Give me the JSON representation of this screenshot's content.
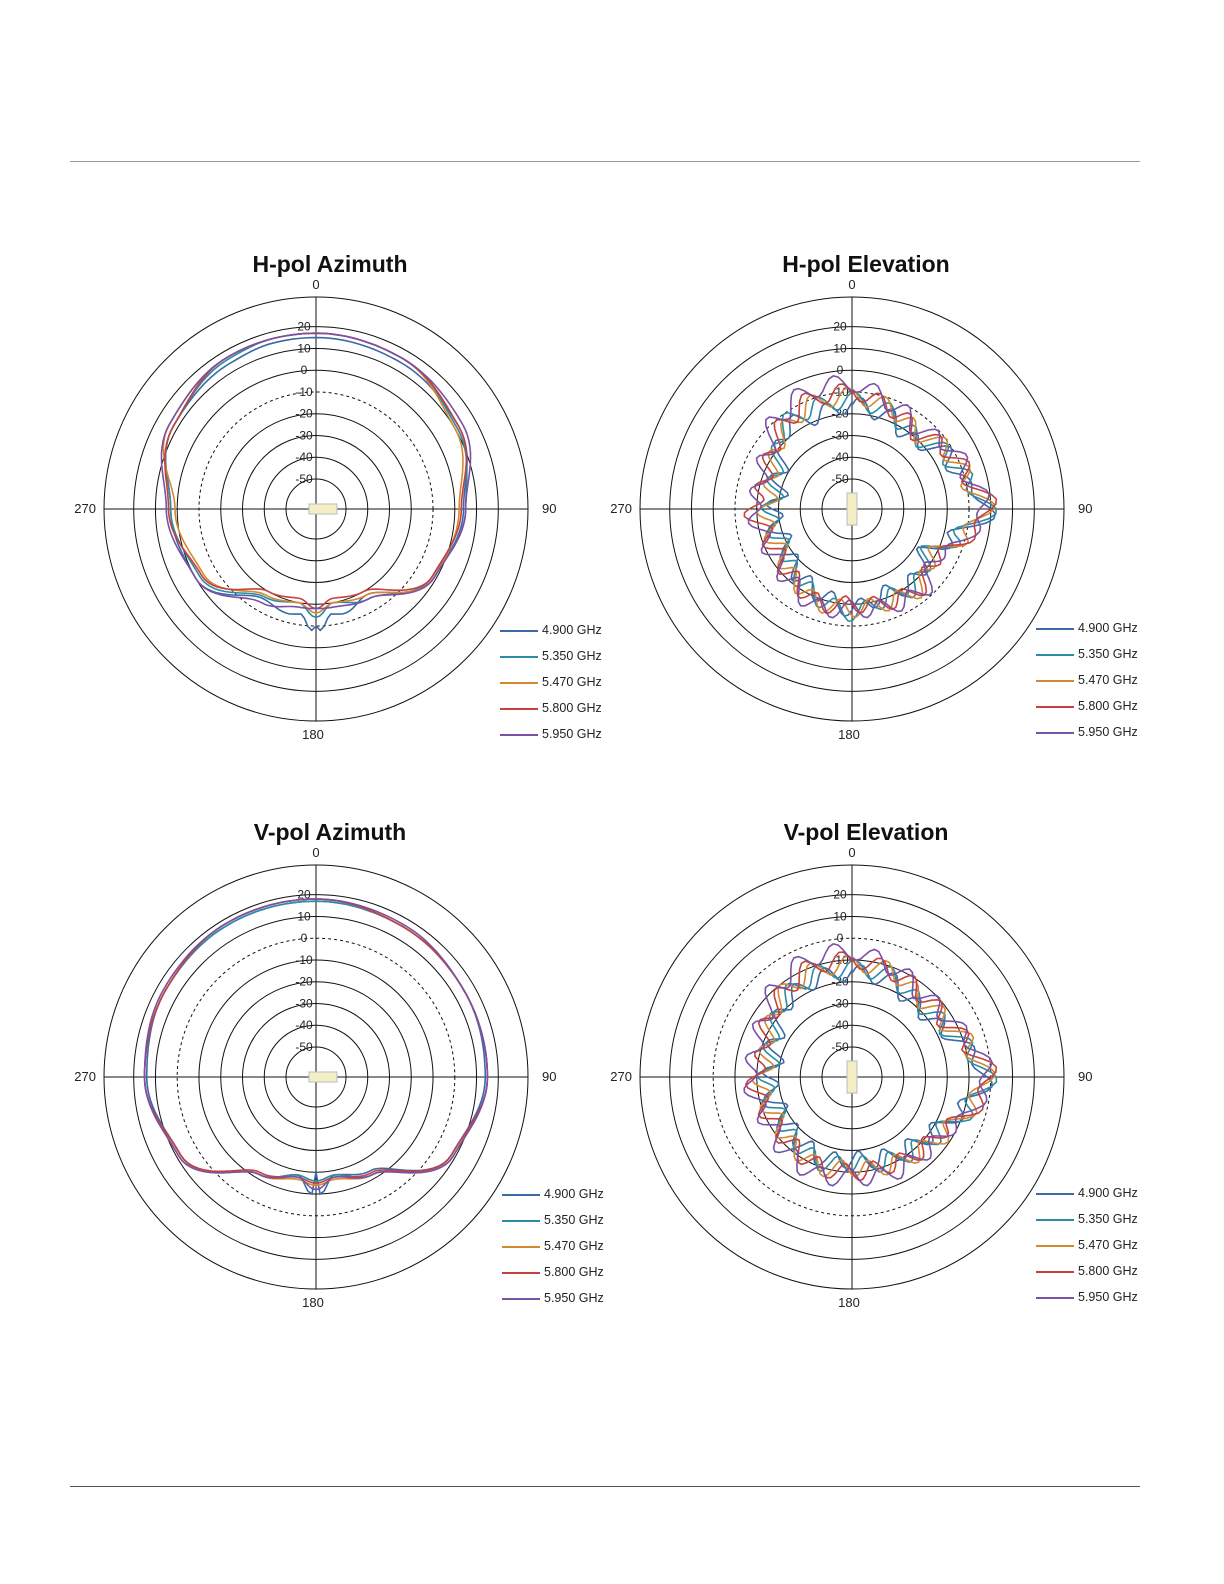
{
  "frequencies": [
    "4.900 GHz",
    "5.350 GHz",
    "5.470 GHz",
    "5.800 GHz",
    "5.950 GHz"
  ],
  "colors": [
    "#3a6aa8",
    "#2a8da4",
    "#d4882f",
    "#c6403d",
    "#7b50a6"
  ],
  "chart_data": [
    {
      "type": "polar-line",
      "title": "H-pol Azimuth",
      "angle_ticks": [
        "0",
        "90",
        "180",
        "270"
      ],
      "radial_ticks": [
        "20",
        "10",
        "0",
        "-10",
        "-20",
        "-30",
        "-40",
        "-50"
      ],
      "rlim": [
        -50,
        20
      ],
      "dashed_ring": -10,
      "series": [
        {
          "name": "4.900 GHz",
          "angle_deg": [
            0,
            30,
            60,
            90,
            120,
            150,
            165,
            172,
            178,
            180,
            182,
            188,
            195,
            210,
            240,
            270,
            300,
            330,
            345
          ],
          "values_db": [
            15,
            14,
            12,
            4,
            -1,
            -18,
            -14,
            -15,
            -8,
            -10,
            -8,
            -15,
            -14,
            -16,
            0,
            3,
            12,
            14,
            15
          ]
        },
        {
          "name": "5.350 GHz",
          "angle_deg": [
            0,
            30,
            60,
            90,
            120,
            150,
            170,
            180,
            190,
            210,
            240,
            270,
            300,
            330,
            345
          ],
          "values_db": [
            17,
            16,
            11,
            5,
            -2,
            -16,
            -20,
            -14,
            -20,
            -17,
            -2,
            3,
            12,
            16,
            17
          ]
        },
        {
          "name": "5.470 GHz",
          "angle_deg": [
            0,
            30,
            60,
            90,
            120,
            150,
            170,
            180,
            190,
            210,
            240,
            270,
            300,
            330,
            345
          ],
          "values_db": [
            17,
            16,
            10,
            2,
            -1,
            -18,
            -20,
            -16,
            -20,
            -18,
            -4,
            1,
            14,
            17,
            17
          ]
        },
        {
          "name": "5.800 GHz",
          "angle_deg": [
            0,
            30,
            60,
            90,
            120,
            150,
            170,
            180,
            190,
            210,
            240,
            270,
            300,
            330,
            345
          ],
          "values_db": [
            17,
            16,
            12,
            3,
            -2,
            -20,
            -22,
            -18,
            -22,
            -20,
            -3,
            4,
            12,
            17,
            17
          ]
        },
        {
          "name": "5.950 GHz",
          "angle_deg": [
            0,
            30,
            60,
            90,
            120,
            150,
            170,
            180,
            190,
            210,
            240,
            270,
            300,
            330,
            345
          ],
          "values_db": [
            17,
            16,
            14,
            5,
            -1,
            -16,
            -18,
            -18,
            -18,
            -14,
            0,
            5,
            14,
            17,
            17
          ]
        }
      ]
    },
    {
      "type": "polar-line",
      "title": "H-pol Elevation",
      "angle_ticks": [
        "0",
        "90",
        "180",
        "270"
      ],
      "radial_ticks": [
        "20",
        "10",
        "0",
        "-10",
        "-20",
        "-30",
        "-40",
        "-50"
      ],
      "rlim": [
        -50,
        20
      ],
      "dashed_ring": -10,
      "series": [
        {
          "name": "4.900 GHz",
          "angle_deg": [
            0,
            20,
            40,
            60,
            75,
            90,
            105,
            120,
            140,
            160,
            180,
            200,
            220,
            240,
            260,
            270,
            280,
            300,
            320,
            340
          ],
          "values_db": [
            -16,
            -18,
            -22,
            -14,
            -12,
            0,
            -15,
            -25,
            -20,
            -22,
            -18,
            -22,
            -25,
            -30,
            -28,
            -28,
            -30,
            -26,
            -16,
            -18
          ]
        },
        {
          "name": "5.350 GHz",
          "angle_deg": [
            0,
            20,
            40,
            60,
            75,
            90,
            105,
            120,
            140,
            160,
            180,
            200,
            220,
            240,
            260,
            270,
            280,
            300,
            320,
            340
          ],
          "values_db": [
            -14,
            -16,
            -20,
            -14,
            -10,
            -1,
            -14,
            -24,
            -18,
            -20,
            -16,
            -20,
            -24,
            -28,
            -26,
            -26,
            -28,
            -24,
            -14,
            -14
          ]
        },
        {
          "name": "5.470 GHz",
          "angle_deg": [
            0,
            20,
            40,
            60,
            75,
            90,
            105,
            120,
            140,
            160,
            180,
            200,
            220,
            240,
            260,
            270,
            280,
            300,
            320,
            340
          ],
          "values_db": [
            -12,
            -14,
            -18,
            -12,
            -10,
            -2,
            -12,
            -22,
            -16,
            -18,
            -18,
            -18,
            -22,
            -26,
            -24,
            -24,
            -26,
            -22,
            -16,
            -12
          ]
        },
        {
          "name": "5.800 GHz",
          "angle_deg": [
            0,
            20,
            40,
            60,
            75,
            90,
            105,
            120,
            140,
            160,
            180,
            200,
            220,
            240,
            260,
            270,
            280,
            300,
            320,
            340
          ],
          "values_db": [
            -10,
            -14,
            -18,
            -12,
            -8,
            0,
            -10,
            -20,
            -16,
            -18,
            -20,
            -18,
            -22,
            -24,
            -22,
            -16,
            -22,
            -20,
            -14,
            -10
          ]
        },
        {
          "name": "5.950 GHz",
          "angle_deg": [
            0,
            20,
            40,
            60,
            75,
            90,
            105,
            120,
            140,
            160,
            180,
            200,
            220,
            240,
            260,
            270,
            280,
            300,
            320,
            340
          ],
          "values_db": [
            -6,
            -12,
            -16,
            -10,
            -8,
            -2,
            -10,
            -20,
            -14,
            -16,
            -18,
            -16,
            -20,
            -22,
            -20,
            -18,
            -20,
            -18,
            -10,
            -6
          ]
        }
      ]
    },
    {
      "type": "polar-line",
      "title": "V-pol Azimuth",
      "angle_ticks": [
        "0",
        "90",
        "180",
        "270"
      ],
      "radial_ticks": [
        "20",
        "10",
        "0",
        "-10",
        "-20",
        "-30",
        "-40",
        "-50"
      ],
      "rlim": [
        -50,
        20
      ],
      "dashed_ring": 0,
      "series": [
        {
          "name": "4.900 GHz",
          "angle_deg": [
            0,
            30,
            60,
            90,
            120,
            150,
            170,
            178,
            180,
            182,
            190,
            210,
            240,
            270,
            300,
            330
          ],
          "values_db": [
            17,
            16,
            15,
            14,
            8,
            -14,
            -18,
            -10,
            -20,
            -10,
            -18,
            -12,
            8,
            14,
            16,
            17
          ]
        },
        {
          "name": "5.350 GHz",
          "angle_deg": [
            0,
            30,
            60,
            90,
            120,
            150,
            170,
            180,
            190,
            210,
            240,
            270,
            300,
            330
          ],
          "values_db": [
            17,
            16,
            15,
            15,
            8,
            -12,
            -18,
            -16,
            -18,
            -12,
            8,
            15,
            16,
            17
          ]
        },
        {
          "name": "5.470 GHz",
          "angle_deg": [
            0,
            30,
            60,
            90,
            120,
            150,
            170,
            180,
            190,
            210,
            240,
            270,
            300,
            330
          ],
          "values_db": [
            18,
            16,
            15,
            15,
            9,
            -12,
            -16,
            -14,
            -16,
            -12,
            9,
            15,
            16,
            18
          ]
        },
        {
          "name": "5.800 GHz",
          "angle_deg": [
            0,
            30,
            60,
            90,
            120,
            150,
            170,
            180,
            190,
            210,
            240,
            270,
            300,
            330
          ],
          "values_db": [
            18,
            16,
            15,
            15,
            8,
            -13,
            -17,
            -15,
            -17,
            -13,
            8,
            15,
            16,
            18
          ]
        },
        {
          "name": "5.950 GHz",
          "angle_deg": [
            0,
            30,
            60,
            90,
            120,
            150,
            170,
            180,
            190,
            210,
            240,
            270,
            300,
            330
          ],
          "values_db": [
            18,
            17,
            15,
            15,
            9,
            -12,
            -17,
            -12,
            -17,
            -12,
            9,
            15,
            17,
            18
          ]
        }
      ]
    },
    {
      "type": "polar-line",
      "title": "V-pol Elevation",
      "angle_ticks": [
        "0",
        "90",
        "180",
        "270"
      ],
      "radial_ticks": [
        "20",
        "10",
        "0",
        "-10",
        "-20",
        "-30",
        "-40",
        "-50"
      ],
      "rlim": [
        -50,
        20
      ],
      "dashed_ring": 0,
      "series": [
        {
          "name": "4.900 GHz",
          "angle_deg": [
            0,
            20,
            40,
            60,
            75,
            90,
            105,
            120,
            140,
            160,
            180,
            200,
            220,
            240,
            260,
            270,
            280,
            300,
            320,
            340
          ],
          "values_db": [
            -16,
            -16,
            -20,
            -18,
            -10,
            -2,
            -10,
            -18,
            -22,
            -24,
            -26,
            -24,
            -26,
            -28,
            -26,
            -26,
            -28,
            -24,
            -18,
            -16
          ]
        },
        {
          "name": "5.350 GHz",
          "angle_deg": [
            0,
            20,
            40,
            60,
            75,
            90,
            105,
            120,
            140,
            160,
            180,
            200,
            220,
            240,
            260,
            270,
            280,
            300,
            320,
            340
          ],
          "values_db": [
            -14,
            -14,
            -18,
            -16,
            -10,
            -1,
            -8,
            -16,
            -20,
            -22,
            -24,
            -22,
            -24,
            -26,
            -24,
            -24,
            -26,
            -22,
            -16,
            -14
          ]
        },
        {
          "name": "5.470 GHz",
          "angle_deg": [
            0,
            20,
            40,
            60,
            75,
            90,
            105,
            120,
            140,
            160,
            180,
            200,
            220,
            240,
            260,
            270,
            280,
            300,
            320,
            340
          ],
          "values_db": [
            -12,
            -12,
            -16,
            -14,
            -8,
            -2,
            -8,
            -14,
            -18,
            -20,
            -22,
            -20,
            -22,
            -24,
            -22,
            -22,
            -24,
            -20,
            -14,
            -12
          ]
        },
        {
          "name": "5.800 GHz",
          "angle_deg": [
            0,
            20,
            40,
            60,
            75,
            90,
            105,
            120,
            140,
            160,
            180,
            200,
            220,
            240,
            260,
            270,
            280,
            300,
            320,
            340
          ],
          "values_db": [
            -10,
            -12,
            -14,
            -14,
            -8,
            0,
            -6,
            -16,
            -18,
            -20,
            -20,
            -20,
            -22,
            -22,
            -20,
            -18,
            -22,
            -18,
            -14,
            -10
          ]
        },
        {
          "name": "5.950 GHz",
          "angle_deg": [
            0,
            20,
            40,
            60,
            75,
            90,
            105,
            120,
            140,
            160,
            180,
            200,
            220,
            240,
            260,
            270,
            280,
            300,
            320,
            340
          ],
          "values_db": [
            -6,
            -10,
            -14,
            -12,
            -6,
            -1,
            -6,
            -14,
            -16,
            -16,
            -18,
            -16,
            -18,
            -20,
            -18,
            -16,
            -18,
            -16,
            -10,
            -6
          ]
        }
      ]
    }
  ]
}
